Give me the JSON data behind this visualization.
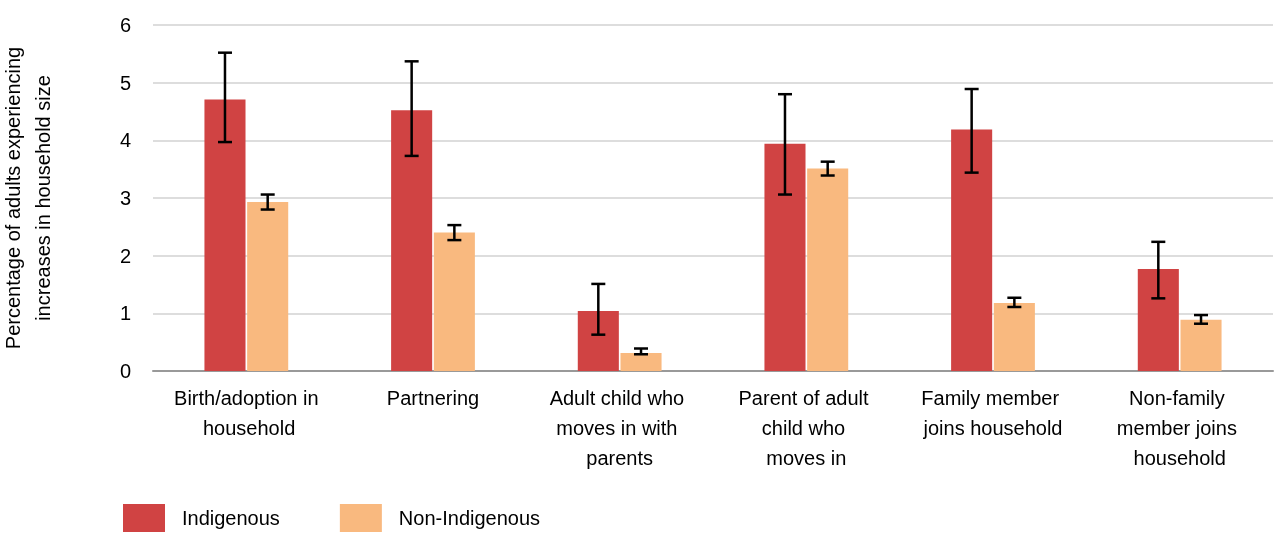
{
  "chart_data": {
    "type": "bar",
    "ylabel": "Percentage of adults experiencing increases in household size",
    "categories": [
      "Birth/adoption in household",
      "Partnering",
      "Adult child who moves in with parents",
      "Parent of adult child who moves in",
      "Family member joins household",
      "Non-family member joins household"
    ],
    "series": [
      {
        "name": "Indigenous",
        "color": "#d04343",
        "values": [
          4.71,
          4.52,
          1.04,
          3.94,
          4.19,
          1.77
        ],
        "errors": [
          [
            3.97,
            5.52
          ],
          [
            3.73,
            5.37
          ],
          [
            0.63,
            1.51
          ],
          [
            3.06,
            4.8
          ],
          [
            3.44,
            4.89
          ],
          [
            1.26,
            2.24
          ]
        ]
      },
      {
        "name": "Non-Indigenous",
        "color": "#f9b97f",
        "values": [
          2.93,
          2.4,
          0.31,
          3.51,
          1.18,
          0.89
        ],
        "errors": [
          [
            2.8,
            3.06
          ],
          [
            2.27,
            2.53
          ],
          [
            0.29,
            0.39
          ],
          [
            3.39,
            3.63
          ],
          [
            1.11,
            1.27
          ],
          [
            0.82,
            0.97
          ]
        ]
      }
    ],
    "ylim": [
      0,
      6
    ],
    "yticks": [
      0,
      1,
      2,
      3,
      4,
      5,
      6
    ],
    "grid": "y",
    "legend": "bottom left"
  }
}
